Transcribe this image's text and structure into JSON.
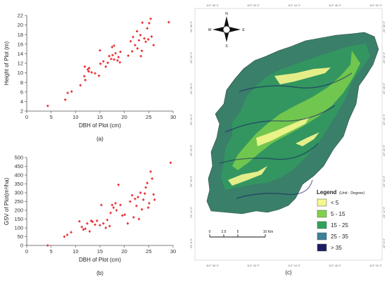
{
  "chart_data": [
    {
      "panel": "(a)",
      "type": "scatter",
      "xlabel": "DBH of Plot (cm)",
      "ylabel": "Height of Plot  (m)",
      "xlim": [
        0,
        30
      ],
      "ylim": [
        2,
        22
      ],
      "xticks": [
        0,
        5,
        10,
        15,
        20,
        25,
        30
      ],
      "yticks": [
        2,
        4,
        6,
        8,
        10,
        12,
        14,
        16,
        18,
        20,
        22
      ],
      "marker_color": "#e8262b",
      "points": [
        [
          4.3,
          3.1
        ],
        [
          7.9,
          4.4
        ],
        [
          8.4,
          5.8
        ],
        [
          9.2,
          6.1
        ],
        [
          11.0,
          7.4
        ],
        [
          11.8,
          9.3
        ],
        [
          12.0,
          8.5
        ],
        [
          11.9,
          11.3
        ],
        [
          12.5,
          10.7
        ],
        [
          12.8,
          11.0
        ],
        [
          12.7,
          10.3
        ],
        [
          13.3,
          10.1
        ],
        [
          14.0,
          9.9
        ],
        [
          14.8,
          9.4
        ],
        [
          15.1,
          11.9
        ],
        [
          15.0,
          14.7
        ],
        [
          15.7,
          12.4
        ],
        [
          16.2,
          11.3
        ],
        [
          16.6,
          12.1
        ],
        [
          16.9,
          13.5
        ],
        [
          17.3,
          12.9
        ],
        [
          17.6,
          13.7
        ],
        [
          17.9,
          12.8
        ],
        [
          18.2,
          14.1
        ],
        [
          18.6,
          12.6
        ],
        [
          18.8,
          13.3
        ],
        [
          19.2,
          14.4
        ],
        [
          19.1,
          12.2
        ],
        [
          17.9,
          15.7
        ],
        [
          17.5,
          15.4
        ],
        [
          20.8,
          13.6
        ],
        [
          21.3,
          16.6
        ],
        [
          21.6,
          14.5
        ],
        [
          21.8,
          17.5
        ],
        [
          22.2,
          15.8
        ],
        [
          22.6,
          18.7
        ],
        [
          22.7,
          15.1
        ],
        [
          23.0,
          16.8
        ],
        [
          23.3,
          17.9
        ],
        [
          23.6,
          14.6
        ],
        [
          23.4,
          13.5
        ],
        [
          23.7,
          20.5
        ],
        [
          24.1,
          17.2
        ],
        [
          24.4,
          16.5
        ],
        [
          24.7,
          19.3
        ],
        [
          24.9,
          17.0
        ],
        [
          25.1,
          20.4
        ],
        [
          25.4,
          21.3
        ],
        [
          25.6,
          17.6
        ],
        [
          26.0,
          15.8
        ],
        [
          29.1,
          20.6
        ]
      ]
    },
    {
      "panel": "(b)",
      "type": "scatter",
      "xlabel": "DBH of Plot (cm)",
      "ylabel": "GSV of Plot(m³/ha)",
      "xlim": [
        0,
        30
      ],
      "ylim": [
        0,
        500
      ],
      "xticks": [
        0,
        5,
        10,
        15,
        20,
        25,
        30
      ],
      "yticks": [
        0,
        50,
        100,
        150,
        200,
        250,
        300,
        350,
        400,
        450,
        500
      ],
      "marker_color": "#e8262b",
      "points": [
        [
          4.3,
          0
        ],
        [
          7.7,
          50
        ],
        [
          8.3,
          60
        ],
        [
          9.1,
          75
        ],
        [
          10.8,
          137
        ],
        [
          11.3,
          105
        ],
        [
          11.6,
          90
        ],
        [
          12.0,
          95
        ],
        [
          12.4,
          125
        ],
        [
          12.9,
          80
        ],
        [
          13.2,
          140
        ],
        [
          13.5,
          135
        ],
        [
          14.0,
          118
        ],
        [
          14.4,
          140
        ],
        [
          15.0,
          115
        ],
        [
          15.3,
          230
        ],
        [
          15.7,
          125
        ],
        [
          16.2,
          100
        ],
        [
          16.5,
          145
        ],
        [
          17.0,
          110
        ],
        [
          17.2,
          185
        ],
        [
          17.5,
          230
        ],
        [
          17.8,
          215
        ],
        [
          18.2,
          240
        ],
        [
          18.4,
          200
        ],
        [
          18.8,
          345
        ],
        [
          19.2,
          230
        ],
        [
          19.6,
          170
        ],
        [
          20.1,
          175
        ],
        [
          20.7,
          125
        ],
        [
          21.2,
          250
        ],
        [
          21.6,
          285
        ],
        [
          21.9,
          160
        ],
        [
          22.2,
          265
        ],
        [
          22.5,
          225
        ],
        [
          22.8,
          275
        ],
        [
          23.0,
          150
        ],
        [
          23.3,
          300
        ],
        [
          23.6,
          205
        ],
        [
          23.9,
          260
        ],
        [
          24.2,
          295
        ],
        [
          24.4,
          330
        ],
        [
          24.7,
          355
        ],
        [
          24.9,
          215
        ],
        [
          25.1,
          240
        ],
        [
          25.4,
          420
        ],
        [
          25.7,
          380
        ],
        [
          26.0,
          290
        ],
        [
          26.2,
          260
        ],
        [
          29.5,
          470
        ]
      ]
    },
    {
      "panel": "(c)",
      "type": "map",
      "legend_title": "Legend",
      "legend_unit": "(Unit : Degree)",
      "legend_items": [
        {
          "label": "< 5",
          "color": "#f6f78e"
        },
        {
          "label": "5 - 15",
          "color": "#7fd24a"
        },
        {
          "label": "15 - 25",
          "color": "#2fa35a"
        },
        {
          "label": "25 - 35",
          "color": "#3c7f9b"
        },
        {
          "label": "> 35",
          "color": "#1a1d63"
        }
      ],
      "scalebar_labels": [
        "0",
        "2.5",
        "5",
        "10 Km"
      ],
      "compass_labels": {
        "n": "N",
        "s": "S",
        "e": "E",
        "w": "W"
      },
      "lon_ticks": [
        "113° 36' 0\"",
        "113° 40' 0\"",
        "113° 44' 0\"",
        "113° 48' 0\"",
        "113° 52' 0\""
      ],
      "lat_ticks": [
        "23° 36' 0\"",
        "23° 32' 0\"",
        "23° 28' 0\"",
        "23° 24' 0\"",
        "23° 20' 0\"",
        "23° 16' 0\"",
        "23° 12' 0\"",
        "23° 8' 0\""
      ]
    }
  ]
}
